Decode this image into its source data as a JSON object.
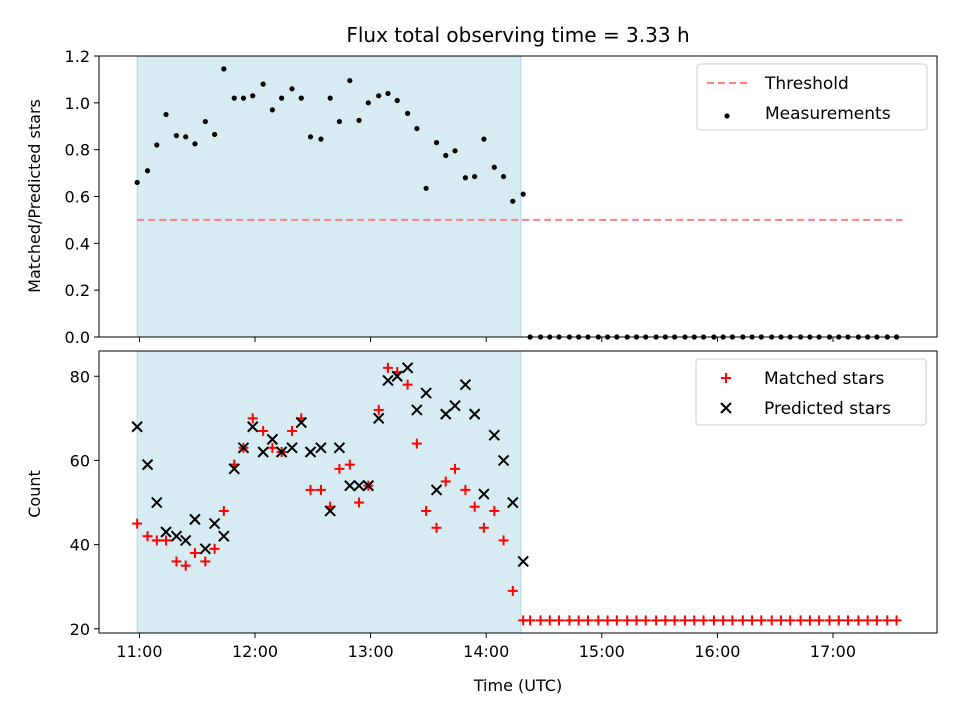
{
  "chart_data": [
    {
      "type": "scatter",
      "title": "Flux total observing time = 3.33 h",
      "xlabel": "",
      "ylabel": "Matched/Predicted stars",
      "ylim": [
        0,
        1.2
      ],
      "yticks": [
        "0.0",
        "0.2",
        "0.4",
        "0.6",
        "0.8",
        "1.0",
        "1.2"
      ],
      "xrange_hours": [
        10.65,
        17.9
      ],
      "grid": false,
      "legend": "top-right",
      "observing_window_hours": [
        10.98,
        14.3
      ],
      "threshold": {
        "name": "Threshold",
        "value": 0.5,
        "x_hours": [
          10.98,
          17.6
        ],
        "color": "#ff7f7f"
      },
      "series": [
        {
          "name": "Measurements",
          "color": "#000000",
          "x_hours": [
            10.98,
            11.07,
            11.15,
            11.23,
            11.32,
            11.4,
            11.48,
            11.57,
            11.65,
            11.73,
            11.82,
            11.9,
            11.98,
            12.07,
            12.15,
            12.23,
            12.32,
            12.4,
            12.48,
            12.57,
            12.65,
            12.73,
            12.82,
            12.9,
            12.98,
            13.07,
            13.15,
            13.23,
            13.32,
            13.4,
            13.48,
            13.57,
            13.65,
            13.73,
            13.82,
            13.9,
            13.98,
            14.07,
            14.15,
            14.23,
            14.32,
            14.38,
            14.47,
            14.55,
            14.63,
            14.72,
            14.8,
            14.88,
            14.97,
            15.05,
            15.13,
            15.22,
            15.3,
            15.38,
            15.47,
            15.55,
            15.63,
            15.72,
            15.8,
            15.88,
            15.97,
            16.05,
            16.13,
            16.22,
            16.3,
            16.38,
            16.47,
            16.55,
            16.63,
            16.72,
            16.8,
            16.88,
            16.97,
            17.05,
            17.13,
            17.22,
            17.3,
            17.38,
            17.47,
            17.55
          ],
          "y": [
            0.66,
            0.71,
            0.82,
            0.95,
            0.86,
            0.855,
            0.825,
            0.92,
            0.865,
            1.145,
            1.02,
            1.02,
            1.03,
            1.08,
            0.97,
            1.02,
            1.06,
            1.02,
            0.855,
            0.845,
            1.02,
            0.92,
            1.095,
            0.925,
            1.0,
            1.03,
            1.04,
            1.01,
            0.955,
            0.89,
            0.635,
            0.83,
            0.775,
            0.795,
            0.68,
            0.685,
            0.845,
            0.725,
            0.685,
            0.58,
            0.61,
            0.0,
            0.0,
            0.0,
            0.0,
            0.0,
            0.0,
            0.0,
            0.0,
            0.0,
            0.0,
            0.0,
            0.0,
            0.0,
            0.0,
            0.0,
            0.0,
            0.0,
            0.0,
            0.0,
            0.0,
            0.0,
            0.0,
            0.0,
            0.0,
            0.0,
            0.0,
            0.0,
            0.0,
            0.0,
            0.0,
            0.0,
            0.0,
            0.0,
            0.0,
            0.0,
            0.0,
            0.0,
            0.0,
            0.0
          ]
        }
      ]
    },
    {
      "type": "scatter",
      "title": "",
      "xlabel": "Time (UTC)",
      "ylabel": "Count",
      "ylim": [
        19,
        86
      ],
      "yticks": [
        "20",
        "40",
        "60",
        "80"
      ],
      "xticks": [
        "11:00",
        "12:00",
        "13:00",
        "14:00",
        "15:00",
        "16:00",
        "17:00"
      ],
      "xrange_hours": [
        10.65,
        17.9
      ],
      "grid": false,
      "legend": "top-right",
      "observing_window_hours": [
        10.98,
        14.3
      ],
      "series": [
        {
          "name": "Matched stars",
          "marker": "plus",
          "color": "#ff0000",
          "x_hours": [
            10.98,
            11.07,
            11.15,
            11.23,
            11.32,
            11.4,
            11.48,
            11.57,
            11.65,
            11.73,
            11.82,
            11.9,
            11.98,
            12.07,
            12.15,
            12.23,
            12.32,
            12.4,
            12.48,
            12.57,
            12.65,
            12.73,
            12.82,
            12.9,
            12.98,
            13.07,
            13.15,
            13.23,
            13.32,
            13.4,
            13.48,
            13.57,
            13.65,
            13.73,
            13.82,
            13.9,
            13.98,
            14.07,
            14.15,
            14.23,
            14.32,
            14.38,
            14.47,
            14.55,
            14.63,
            14.72,
            14.8,
            14.88,
            14.97,
            15.05,
            15.13,
            15.22,
            15.3,
            15.38,
            15.47,
            15.55,
            15.63,
            15.72,
            15.8,
            15.88,
            15.97,
            16.05,
            16.13,
            16.22,
            16.3,
            16.38,
            16.47,
            16.55,
            16.63,
            16.72,
            16.8,
            16.88,
            16.97,
            17.05,
            17.13,
            17.22,
            17.3,
            17.38,
            17.47,
            17.55
          ],
          "y": [
            45,
            42,
            41,
            41,
            36,
            35,
            38,
            36,
            39,
            48,
            59,
            63,
            70,
            67,
            63,
            62,
            67,
            70,
            53,
            53,
            49,
            58,
            59,
            50,
            54,
            72,
            82,
            81,
            78,
            64,
            48,
            44,
            55,
            58,
            53,
            49,
            44,
            48,
            41,
            29,
            22,
            22,
            22,
            22,
            22,
            22,
            22,
            22,
            22,
            22,
            22,
            22,
            22,
            22,
            22,
            22,
            22,
            22,
            22,
            22,
            22,
            22,
            22,
            22,
            22,
            22,
            22,
            22,
            22,
            22,
            22,
            22,
            22,
            22,
            22,
            22,
            22,
            22,
            22,
            22
          ]
        },
        {
          "name": "Predicted stars",
          "marker": "x",
          "color": "#000000",
          "x_hours": [
            10.98,
            11.07,
            11.15,
            11.23,
            11.32,
            11.4,
            11.48,
            11.57,
            11.65,
            11.73,
            11.82,
            11.9,
            11.98,
            12.07,
            12.15,
            12.23,
            12.32,
            12.4,
            12.48,
            12.57,
            12.65,
            12.73,
            12.82,
            12.9,
            12.98,
            13.07,
            13.15,
            13.23,
            13.32,
            13.4,
            13.48,
            13.57,
            13.65,
            13.73,
            13.82,
            13.9,
            13.98,
            14.07,
            14.15,
            14.23,
            14.32
          ],
          "y": [
            68,
            59,
            50,
            43,
            42,
            41,
            46,
            39,
            45,
            42,
            58,
            63,
            68,
            62,
            65,
            62,
            63,
            69,
            62,
            63,
            48,
            63,
            54,
            54,
            54,
            70,
            79,
            80,
            82,
            72,
            76,
            53,
            71,
            73,
            78,
            71,
            52,
            66,
            60,
            50,
            36
          ]
        }
      ]
    }
  ]
}
